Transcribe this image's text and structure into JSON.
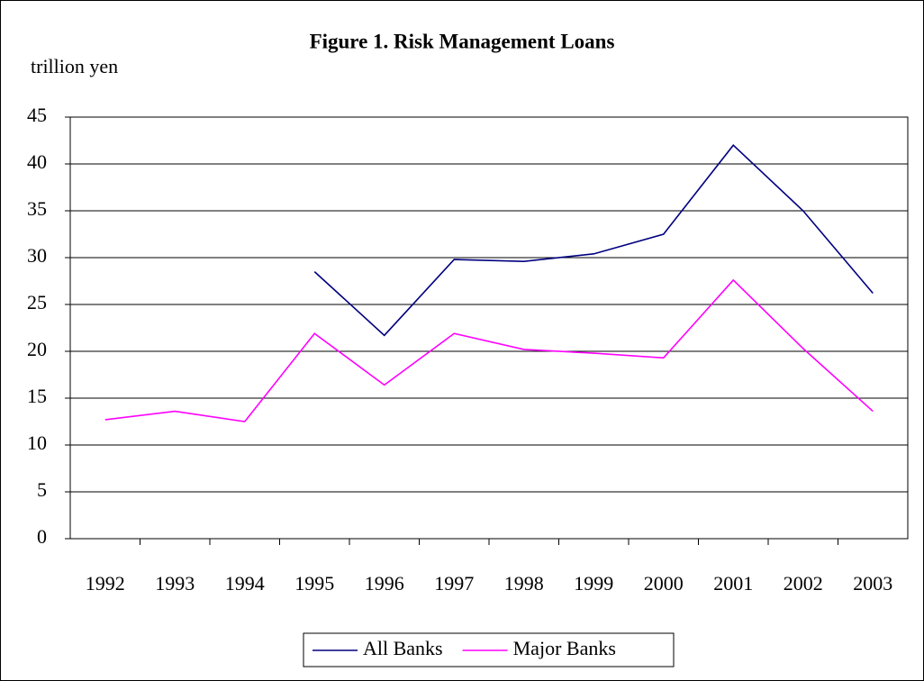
{
  "chart_data": {
    "type": "line",
    "title": "Figure 1. Risk Management Loans",
    "y_label": "trillion yen",
    "categories": [
      "1992",
      "1993",
      "1994",
      "1995",
      "1996",
      "1997",
      "1998",
      "1999",
      "2000",
      "2001",
      "2002",
      "2003"
    ],
    "series": [
      {
        "name": "All Banks",
        "color": "#000080",
        "values": [
          null,
          null,
          null,
          28.5,
          21.7,
          29.8,
          29.6,
          30.4,
          32.5,
          42.0,
          35.0,
          26.2
        ]
      },
      {
        "name": "Major Banks",
        "color": "#ff00ff",
        "values": [
          12.7,
          13.6,
          12.5,
          21.9,
          16.4,
          21.9,
          20.2,
          19.8,
          19.3,
          27.6,
          20.3,
          13.6
        ]
      }
    ],
    "ylim": [
      0,
      45
    ],
    "yticks": [
      0,
      5,
      10,
      15,
      20,
      25,
      30,
      35,
      40,
      45
    ],
    "grid": true,
    "legend": "bottom"
  }
}
